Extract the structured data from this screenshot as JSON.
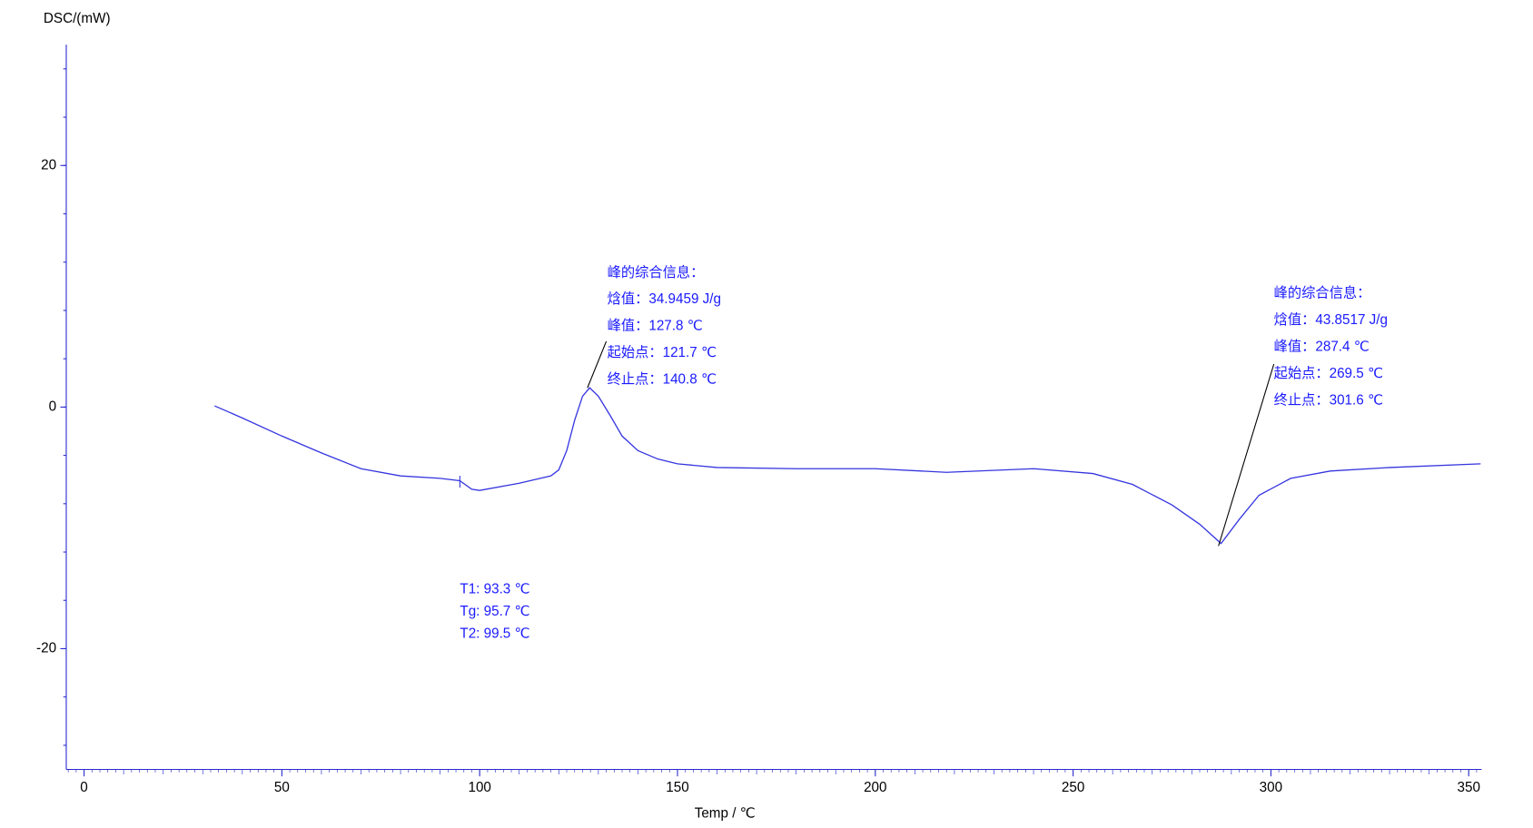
{
  "chart_data": {
    "type": "line",
    "ylabel": "DSC/(mW)",
    "xlabel": "Temp / ℃",
    "x": [
      33,
      40,
      50,
      60,
      70,
      80,
      90,
      95,
      98,
      100,
      110,
      118,
      120,
      122,
      124,
      126,
      127.8,
      130,
      133,
      136,
      140,
      145,
      150,
      160,
      180,
      200,
      218,
      240,
      255,
      265,
      275,
      282,
      287.4,
      292,
      297,
      305,
      315,
      330,
      353
    ],
    "series": [
      {
        "color": "#3535e0",
        "values": [
          0.1,
          -0.9,
          -2.4,
          -3.8,
          -5.1,
          -5.7,
          -5.9,
          -6.1,
          -6.8,
          -6.9,
          -6.3,
          -5.7,
          -5.2,
          -3.6,
          -1.1,
          0.9,
          1.6,
          0.9,
          -0.7,
          -2.4,
          -3.6,
          -4.3,
          -4.7,
          -5.0,
          -5.1,
          -5.1,
          -5.4,
          -5.1,
          -5.5,
          -6.4,
          -8.1,
          -9.7,
          -11.3,
          -9.3,
          -7.3,
          -5.9,
          -5.3,
          -5.0,
          -4.7
        ]
      }
    ],
    "xlim": [
      -4.5,
      353.25
    ],
    "ylim": [
      -30,
      30
    ],
    "xticks": [
      0,
      50,
      100,
      150,
      200,
      250,
      300,
      350
    ],
    "yticks": [
      -20,
      0,
      20
    ],
    "annotations": [
      {
        "lines": [
          "峰的综合信息：",
          "焓值：34.9459 J/g",
          "峰值：127.8 ℃",
          "起始点：121.7 ℃",
          "终止点：140.8 ℃"
        ]
      },
      {
        "lines": [
          "峰的综合信息：",
          "焓值：43.8517 J/g",
          "峰值：287.4 ℃",
          "起始点：269.5 ℃",
          "终止点：301.6 ℃"
        ]
      },
      {
        "lines": [
          "T1:  93.3 ℃",
          "Tg:  95.7 ℃",
          "T2:  99.5 ℃"
        ]
      }
    ]
  }
}
